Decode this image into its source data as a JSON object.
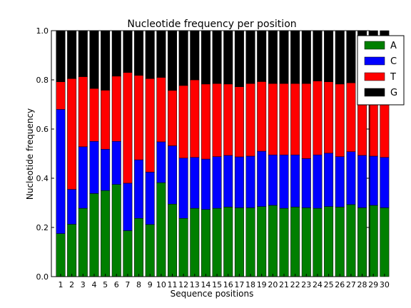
{
  "chart_data": {
    "type": "bar",
    "stacked": true,
    "title": "Nucleotide frequency per position",
    "xlabel": "Sequence positions",
    "ylabel": "Nucleotide frequency",
    "ylim": [
      0,
      1.0
    ],
    "yticks": [
      "0.0",
      "0.2",
      "0.4",
      "0.6",
      "0.8",
      "1.0"
    ],
    "grid": false,
    "legend_position": "top-right, outside plot area",
    "categories": [
      "1",
      "2",
      "3",
      "4",
      "5",
      "6",
      "7",
      "8",
      "9",
      "10",
      "11",
      "12",
      "13",
      "14",
      "15",
      "16",
      "17",
      "18",
      "19",
      "20",
      "21",
      "22",
      "23",
      "24",
      "25",
      "26",
      "27",
      "28",
      "29",
      "30"
    ],
    "series": [
      {
        "name": "A",
        "color": "#007f00",
        "values": [
          0.175,
          0.213,
          0.278,
          0.338,
          0.35,
          0.375,
          0.187,
          0.237,
          0.212,
          0.382,
          0.295,
          0.237,
          0.278,
          0.273,
          0.278,
          0.283,
          0.28,
          0.28,
          0.285,
          0.29,
          0.278,
          0.283,
          0.28,
          0.278,
          0.285,
          0.283,
          0.293,
          0.28,
          0.29,
          0.28
        ]
      },
      {
        "name": "C",
        "color": "#0000ff",
        "values": [
          0.505,
          0.142,
          0.25,
          0.212,
          0.168,
          0.175,
          0.193,
          0.238,
          0.213,
          0.166,
          0.237,
          0.245,
          0.207,
          0.205,
          0.21,
          0.21,
          0.207,
          0.21,
          0.225,
          0.205,
          0.217,
          0.212,
          0.2,
          0.217,
          0.217,
          0.205,
          0.215,
          0.213,
          0.2,
          0.205
        ]
      },
      {
        "name": "T",
        "color": "#ff0000",
        "values": [
          0.112,
          0.45,
          0.285,
          0.215,
          0.24,
          0.265,
          0.45,
          0.343,
          0.38,
          0.262,
          0.225,
          0.295,
          0.315,
          0.305,
          0.297,
          0.29,
          0.285,
          0.295,
          0.283,
          0.29,
          0.29,
          0.29,
          0.305,
          0.3,
          0.29,
          0.295,
          0.28,
          0.297,
          0.293,
          0.3
        ]
      },
      {
        "name": "G",
        "color": "#000000",
        "values": [
          0.208,
          0.195,
          0.187,
          0.235,
          0.242,
          0.185,
          0.17,
          0.182,
          0.195,
          0.19,
          0.243,
          0.223,
          0.2,
          0.217,
          0.215,
          0.217,
          0.228,
          0.215,
          0.207,
          0.215,
          0.215,
          0.215,
          0.215,
          0.205,
          0.208,
          0.217,
          0.212,
          0.21,
          0.217,
          0.215
        ]
      }
    ]
  }
}
